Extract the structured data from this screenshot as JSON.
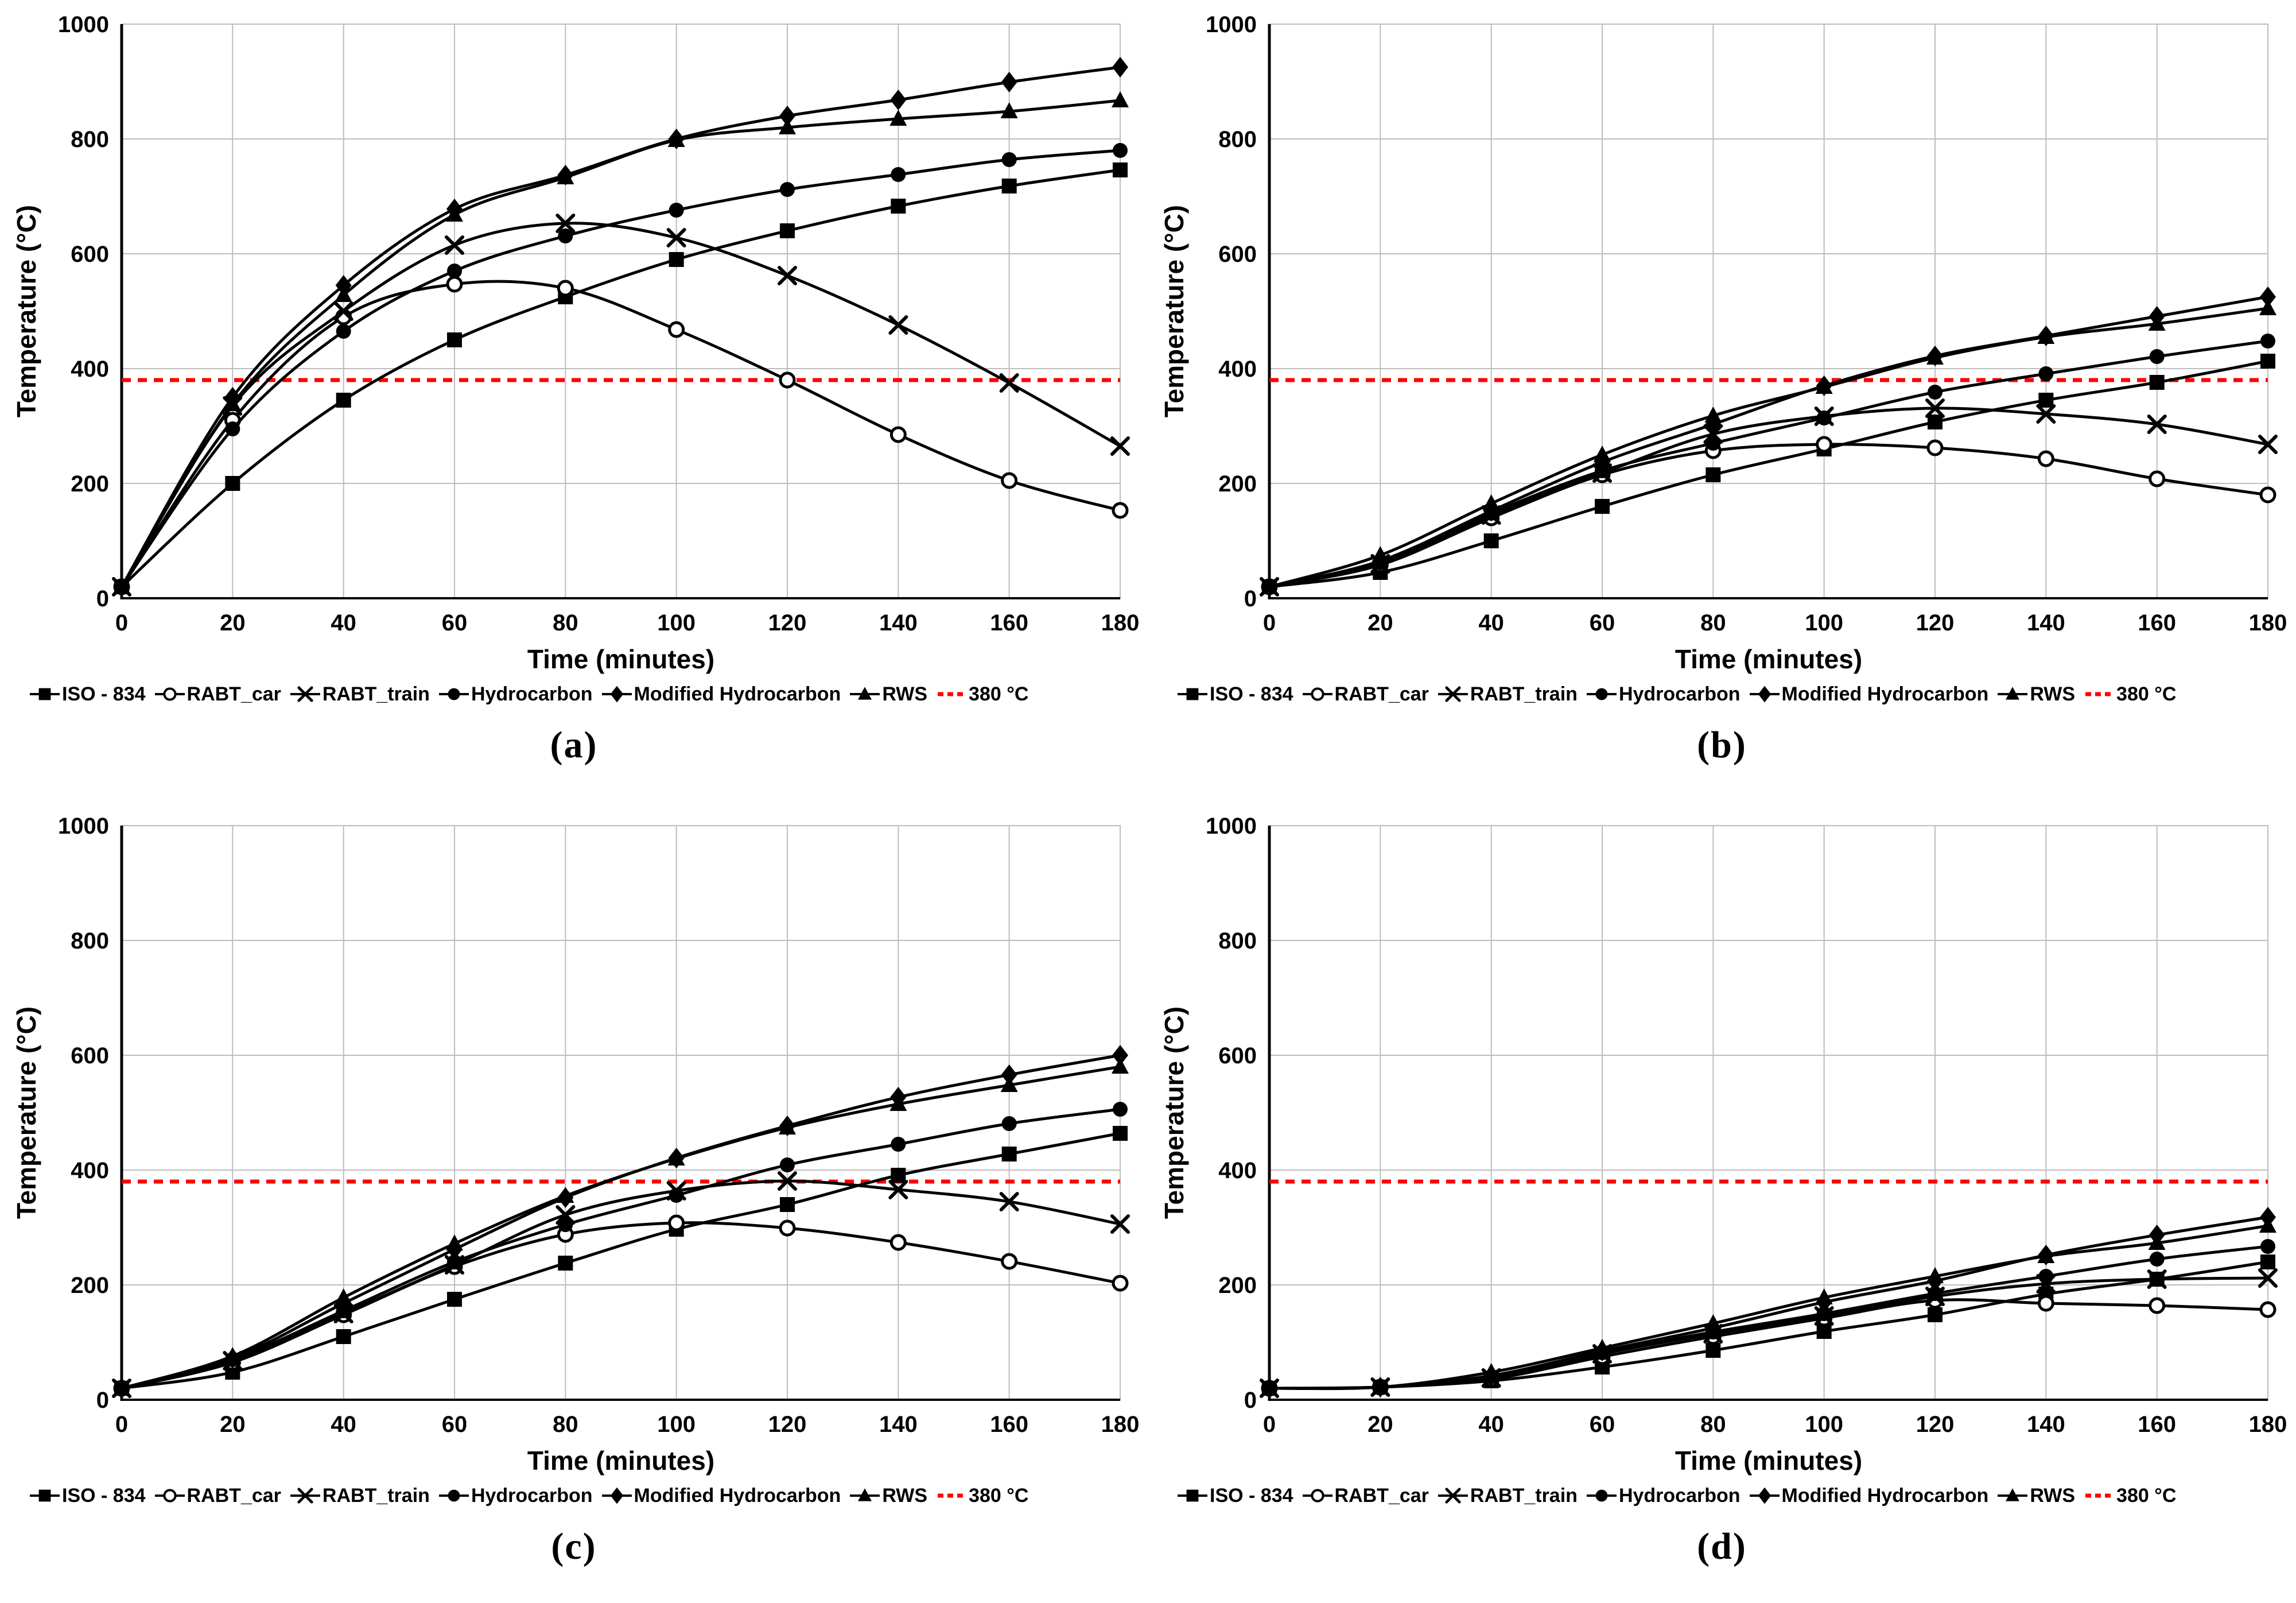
{
  "page": {
    "background": "#ffffff"
  },
  "colors": {
    "series": "#000000",
    "grid": "#bdbdbd",
    "axis": "#000000",
    "threshold": "#ff0000",
    "marker_fill": "#000000",
    "open_marker_fill": "#ffffff"
  },
  "axes": {
    "xlabel": "Time (minutes)",
    "ylabel": "Temperature (°C)",
    "xlim": [
      0,
      180
    ],
    "ylim": [
      0,
      1000
    ],
    "xticks": [
      0,
      20,
      40,
      60,
      80,
      100,
      120,
      140,
      160,
      180
    ],
    "yticks": [
      0,
      200,
      400,
      600,
      800,
      1000
    ],
    "grid": true
  },
  "legend": {
    "position": "bottom",
    "items": [
      {
        "label": "ISO - 834",
        "marker": "square"
      },
      {
        "label": "RABT_car",
        "marker": "open-circle"
      },
      {
        "label": "RABT_train",
        "marker": "x"
      },
      {
        "label": "Hydrocarbon",
        "marker": "filled-circle"
      },
      {
        "label": "Modified Hydrocarbon",
        "marker": "diamond"
      },
      {
        "label": "RWS",
        "marker": "triangle"
      },
      {
        "label": "380 °C",
        "marker": "red-dash"
      }
    ]
  },
  "chart_data": [
    {
      "id": "a",
      "sublabel": "(a)",
      "type": "line",
      "title": "",
      "xlabel": "Time (minutes)",
      "ylabel": "Temperature (°C)",
      "xlim": [
        0,
        180
      ],
      "ylim": [
        0,
        1000
      ],
      "x": [
        0,
        20,
        40,
        60,
        80,
        100,
        120,
        140,
        160,
        180
      ],
      "threshold": {
        "value": 380,
        "label": "380 °C"
      },
      "series": [
        {
          "name": "ISO - 834",
          "marker": "square",
          "values": [
            20,
            200,
            345,
            450,
            525,
            590,
            640,
            683,
            718,
            746
          ]
        },
        {
          "name": "RABT_car",
          "marker": "open-circle",
          "values": [
            20,
            310,
            490,
            547,
            540,
            468,
            380,
            285,
            205,
            153
          ]
        },
        {
          "name": "RABT_train",
          "marker": "x",
          "values": [
            20,
            335,
            500,
            615,
            653,
            628,
            562,
            476,
            375,
            265
          ]
        },
        {
          "name": "Hydrocarbon",
          "marker": "filled-circle",
          "values": [
            20,
            295,
            465,
            570,
            631,
            676,
            712,
            738,
            764,
            780
          ]
        },
        {
          "name": "Modified Hydrocarbon",
          "marker": "diamond",
          "values": [
            20,
            350,
            545,
            678,
            737,
            800,
            840,
            868,
            899,
            925
          ]
        },
        {
          "name": "RWS",
          "marker": "triangle",
          "values": [
            20,
            338,
            528,
            668,
            733,
            798,
            820,
            835,
            848,
            867
          ]
        }
      ]
    },
    {
      "id": "b",
      "sublabel": "(b)",
      "type": "line",
      "title": "",
      "xlabel": "Time (minutes)",
      "ylabel": "Temperature (°C)",
      "xlim": [
        0,
        180
      ],
      "ylim": [
        0,
        1000
      ],
      "x": [
        0,
        20,
        40,
        60,
        80,
        100,
        120,
        140,
        160,
        180
      ],
      "threshold": {
        "value": 380,
        "label": "380 °C"
      },
      "series": [
        {
          "name": "ISO - 834",
          "marker": "square",
          "values": [
            20,
            45,
            100,
            160,
            215,
            260,
            307,
            345,
            376,
            413
          ]
        },
        {
          "name": "RABT_car",
          "marker": "open-circle",
          "values": [
            20,
            58,
            140,
            215,
            257,
            268,
            262,
            243,
            208,
            180
          ]
        },
        {
          "name": "RABT_train",
          "marker": "x",
          "values": [
            20,
            60,
            145,
            218,
            286,
            317,
            331,
            321,
            303,
            268
          ]
        },
        {
          "name": "Hydrocarbon",
          "marker": "filled-circle",
          "values": [
            20,
            62,
            148,
            222,
            270,
            314,
            359,
            391,
            421,
            448
          ]
        },
        {
          "name": "Modified Hydrocarbon",
          "marker": "diamond",
          "values": [
            20,
            65,
            152,
            237,
            303,
            370,
            422,
            457,
            491,
            525
          ]
        },
        {
          "name": "RWS",
          "marker": "triangle",
          "values": [
            20,
            75,
            165,
            250,
            318,
            368,
            419,
            455,
            478,
            505
          ]
        }
      ]
    },
    {
      "id": "c",
      "sublabel": "(c)",
      "type": "line",
      "title": "",
      "xlabel": "Time (minutes)",
      "ylabel": "Temperature (°C)",
      "xlim": [
        0,
        180
      ],
      "ylim": [
        0,
        1000
      ],
      "x": [
        0,
        20,
        40,
        60,
        80,
        100,
        120,
        140,
        160,
        180
      ],
      "threshold": {
        "value": 380,
        "label": "380 °C"
      },
      "series": [
        {
          "name": "ISO - 834",
          "marker": "square",
          "values": [
            20,
            48,
            110,
            175,
            238,
            297,
            340,
            391,
            428,
            464
          ]
        },
        {
          "name": "RABT_car",
          "marker": "open-circle",
          "values": [
            20,
            65,
            148,
            232,
            288,
            308,
            299,
            274,
            241,
            203
          ]
        },
        {
          "name": "RABT_train",
          "marker": "x",
          "values": [
            20,
            68,
            150,
            235,
            322,
            364,
            381,
            366,
            345,
            306
          ]
        },
        {
          "name": "Hydrocarbon",
          "marker": "filled-circle",
          "values": [
            20,
            70,
            155,
            240,
            305,
            356,
            409,
            445,
            481,
            506
          ]
        },
        {
          "name": "Modified Hydrocarbon",
          "marker": "diamond",
          "values": [
            20,
            72,
            168,
            262,
            352,
            421,
            477,
            527,
            566,
            600
          ]
        },
        {
          "name": "RWS",
          "marker": "triangle",
          "values": [
            20,
            76,
            178,
            272,
            355,
            420,
            474,
            515,
            548,
            580
          ]
        }
      ]
    },
    {
      "id": "d",
      "sublabel": "(d)",
      "type": "line",
      "title": "",
      "xlabel": "Time (minutes)",
      "ylabel": "Temperature (°C)",
      "xlim": [
        0,
        180
      ],
      "ylim": [
        0,
        1000
      ],
      "x": [
        0,
        20,
        40,
        60,
        80,
        100,
        120,
        140,
        160,
        180
      ],
      "threshold": {
        "value": 380,
        "label": "380 °C"
      },
      "series": [
        {
          "name": "ISO - 834",
          "marker": "square",
          "values": [
            20,
            22,
            33,
            57,
            86,
            119,
            148,
            184,
            210,
            240
          ]
        },
        {
          "name": "RABT_car",
          "marker": "open-circle",
          "values": [
            20,
            22,
            36,
            75,
            110,
            142,
            173,
            168,
            164,
            157
          ]
        },
        {
          "name": "RABT_train",
          "marker": "x",
          "values": [
            20,
            22,
            38,
            80,
            115,
            146,
            180,
            202,
            210,
            212
          ]
        },
        {
          "name": "Hydrocarbon",
          "marker": "filled-circle",
          "values": [
            20,
            22,
            40,
            82,
            118,
            150,
            185,
            215,
            245,
            267
          ]
        },
        {
          "name": "Modified Hydrocarbon",
          "marker": "diamond",
          "values": [
            20,
            22,
            42,
            85,
            125,
            170,
            207,
            252,
            287,
            318
          ]
        },
        {
          "name": "RWS",
          "marker": "triangle",
          "values": [
            20,
            22,
            48,
            90,
            133,
            178,
            215,
            250,
            273,
            303
          ]
        }
      ]
    }
  ]
}
